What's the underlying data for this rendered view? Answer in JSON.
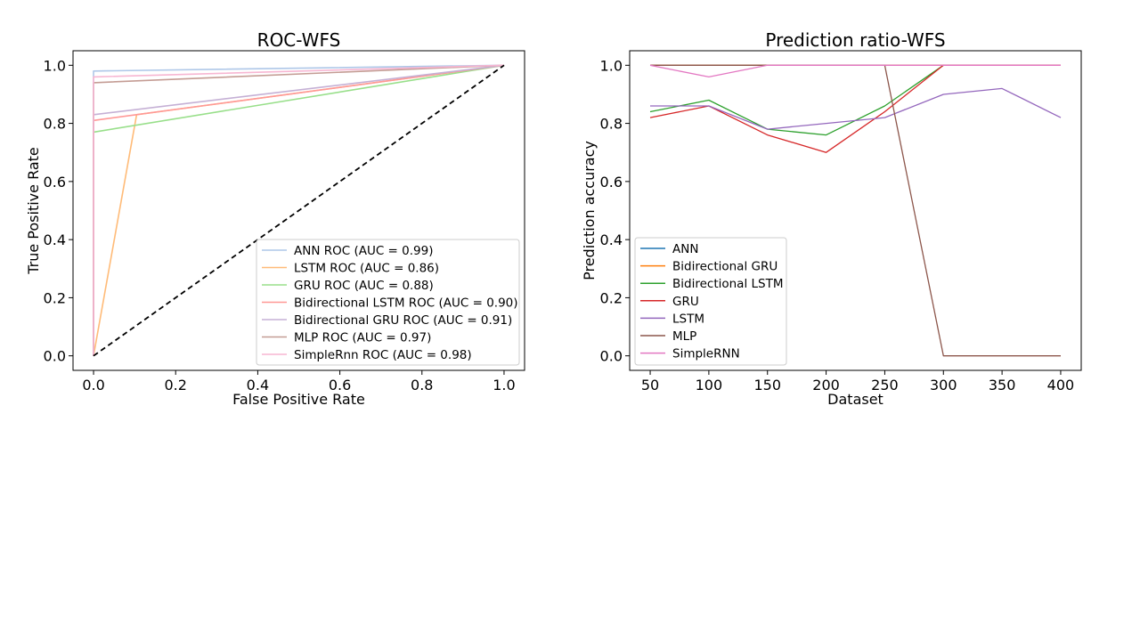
{
  "chart_data": [
    {
      "type": "line",
      "title": "ROC-WFS",
      "xlabel": "False Positive Rate",
      "ylabel": "True Positive Rate",
      "xlim": [
        -0.05,
        1.05
      ],
      "ylim": [
        -0.05,
        1.05
      ],
      "xticks": [
        0.0,
        0.2,
        0.4,
        0.6,
        0.8,
        1.0
      ],
      "yticks": [
        0.0,
        0.2,
        0.4,
        0.6,
        0.8,
        1.0
      ],
      "grid": false,
      "legend_position": "lower-right",
      "series": [
        {
          "name": "ANN ROC (AUC = 0.99)",
          "color": "#aec7e8",
          "x": [
            0,
            0,
            1
          ],
          "y": [
            0,
            0.98,
            1
          ]
        },
        {
          "name": "LSTM ROC (AUC = 0.86)",
          "color": "#ffbb78",
          "x": [
            0,
            0.105,
            1
          ],
          "y": [
            0,
            0.83,
            1
          ]
        },
        {
          "name": "GRU ROC (AUC = 0.88)",
          "color": "#98df8a",
          "x": [
            0,
            0,
            1
          ],
          "y": [
            0,
            0.77,
            1
          ]
        },
        {
          "name": "Bidirectional LSTM ROC (AUC = 0.90)",
          "color": "#ff9896",
          "x": [
            0,
            0,
            1
          ],
          "y": [
            0,
            0.81,
            1
          ]
        },
        {
          "name": "Bidirectional GRU ROC (AUC = 0.91)",
          "color": "#c5b0d5",
          "x": [
            0,
            0,
            1
          ],
          "y": [
            0,
            0.83,
            1
          ]
        },
        {
          "name": "MLP ROC (AUC = 0.97)",
          "color": "#c49c94",
          "x": [
            0,
            0,
            1
          ],
          "y": [
            0,
            0.94,
            1
          ]
        },
        {
          "name": "SimpleRnn ROC (AUC = 0.98)",
          "color": "#f7b6d2",
          "x": [
            0,
            0,
            1
          ],
          "y": [
            0,
            0.96,
            1
          ]
        }
      ],
      "reference_line": {
        "color": "#000000",
        "dashed": true,
        "x": [
          0,
          1
        ],
        "y": [
          0,
          1
        ]
      }
    },
    {
      "type": "line",
      "title": "Prediction ratio-WFS",
      "xlabel": "Dataset",
      "ylabel": "Prediction accuracy",
      "xlim": [
        32.5,
        417.5
      ],
      "ylim": [
        -0.05,
        1.05
      ],
      "xticks": [
        50,
        100,
        150,
        200,
        250,
        300,
        350,
        400
      ],
      "yticks": [
        0.0,
        0.2,
        0.4,
        0.6,
        0.8,
        1.0
      ],
      "grid": false,
      "legend_position": "lower-left",
      "x": [
        50,
        100,
        150,
        200,
        250,
        300,
        350,
        400
      ],
      "series": [
        {
          "name": "ANN",
          "color": "#1f77b4",
          "values": [
            1.0,
            1.0,
            1.0,
            1.0,
            1.0,
            1.0,
            1.0,
            1.0
          ]
        },
        {
          "name": "Bidirectional GRU",
          "color": "#ff7f0e",
          "values": [
            1.0,
            1.0,
            1.0,
            1.0,
            1.0,
            1.0,
            1.0,
            1.0
          ]
        },
        {
          "name": "Bidirectional LSTM",
          "color": "#2ca02c",
          "values": [
            0.84,
            0.88,
            0.78,
            0.76,
            0.86,
            1.0,
            1.0,
            1.0
          ]
        },
        {
          "name": "GRU",
          "color": "#d62728",
          "values": [
            0.82,
            0.86,
            0.76,
            0.7,
            0.84,
            1.0,
            1.0,
            1.0
          ]
        },
        {
          "name": "LSTM",
          "color": "#9467bd",
          "values": [
            0.86,
            0.86,
            0.78,
            0.8,
            0.82,
            0.9,
            0.92,
            0.82
          ]
        },
        {
          "name": "MLP",
          "color": "#8c564b",
          "values": [
            1.0,
            1.0,
            1.0,
            1.0,
            1.0,
            0.0,
            0.0,
            0.0
          ]
        },
        {
          "name": "SimpleRNN",
          "color": "#e377c2",
          "values": [
            1.0,
            0.96,
            1.0,
            1.0,
            1.0,
            1.0,
            1.0,
            1.0
          ]
        }
      ]
    }
  ]
}
